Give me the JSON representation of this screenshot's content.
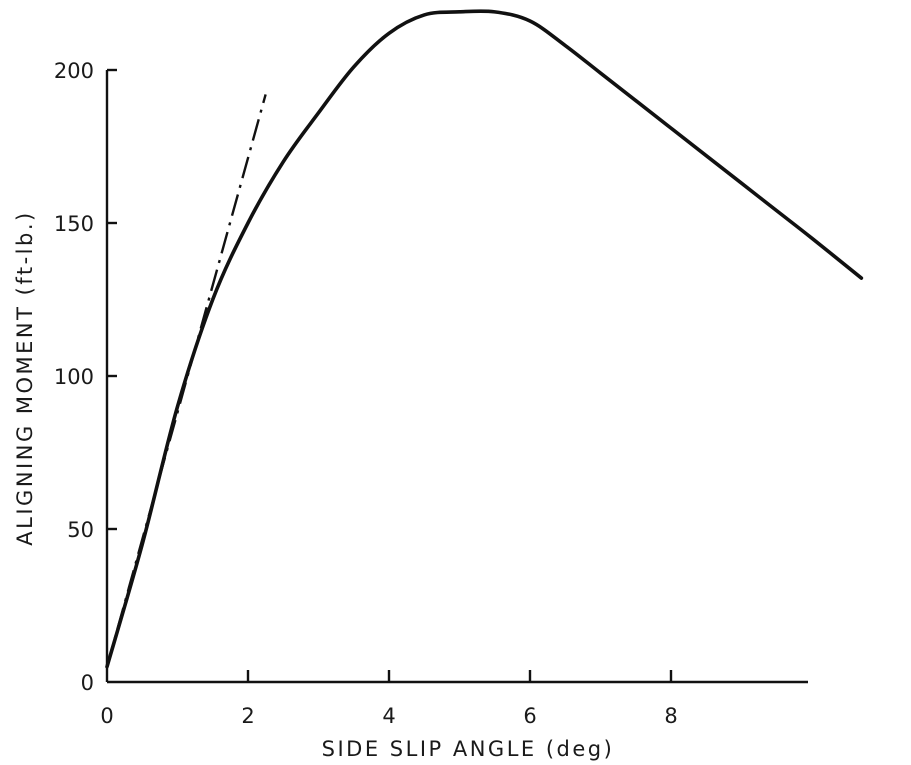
{
  "chart_data": {
    "type": "line",
    "xlabel": "SIDE SLIP ANGLE (deg)",
    "ylabel": "ALIGNING MOMENT (ft-lb.)",
    "xlim": [
      0,
      10
    ],
    "ylim": [
      0,
      200
    ],
    "x_ticks": [
      0,
      2,
      4,
      6,
      8
    ],
    "x_tick_labels": [
      "0",
      "2",
      "4",
      "6",
      "8"
    ],
    "y_ticks": [
      0,
      50,
      100,
      150,
      200
    ],
    "y_tick_labels": [
      "0",
      "50",
      "100",
      "150",
      "200"
    ],
    "grid": false,
    "series": [
      {
        "style": "solid",
        "x": [
          0,
          0.5,
          1.0,
          1.5,
          2.0,
          2.5,
          3.0,
          3.5,
          4.0,
          4.5,
          5.0,
          5.5,
          6.0,
          6.5,
          7.0,
          7.5,
          8.0,
          8.5,
          9.0,
          9.5,
          10.0,
          10.7
        ],
        "y": [
          5,
          45,
          90,
          125,
          150,
          170,
          186,
          201,
          212,
          218,
          219,
          219,
          216,
          208,
          199,
          190,
          181,
          172,
          163,
          154,
          145,
          132
        ]
      },
      {
        "style": "dash-dot",
        "x": [
          0,
          2.25
        ],
        "y": [
          5,
          192
        ]
      }
    ]
  }
}
